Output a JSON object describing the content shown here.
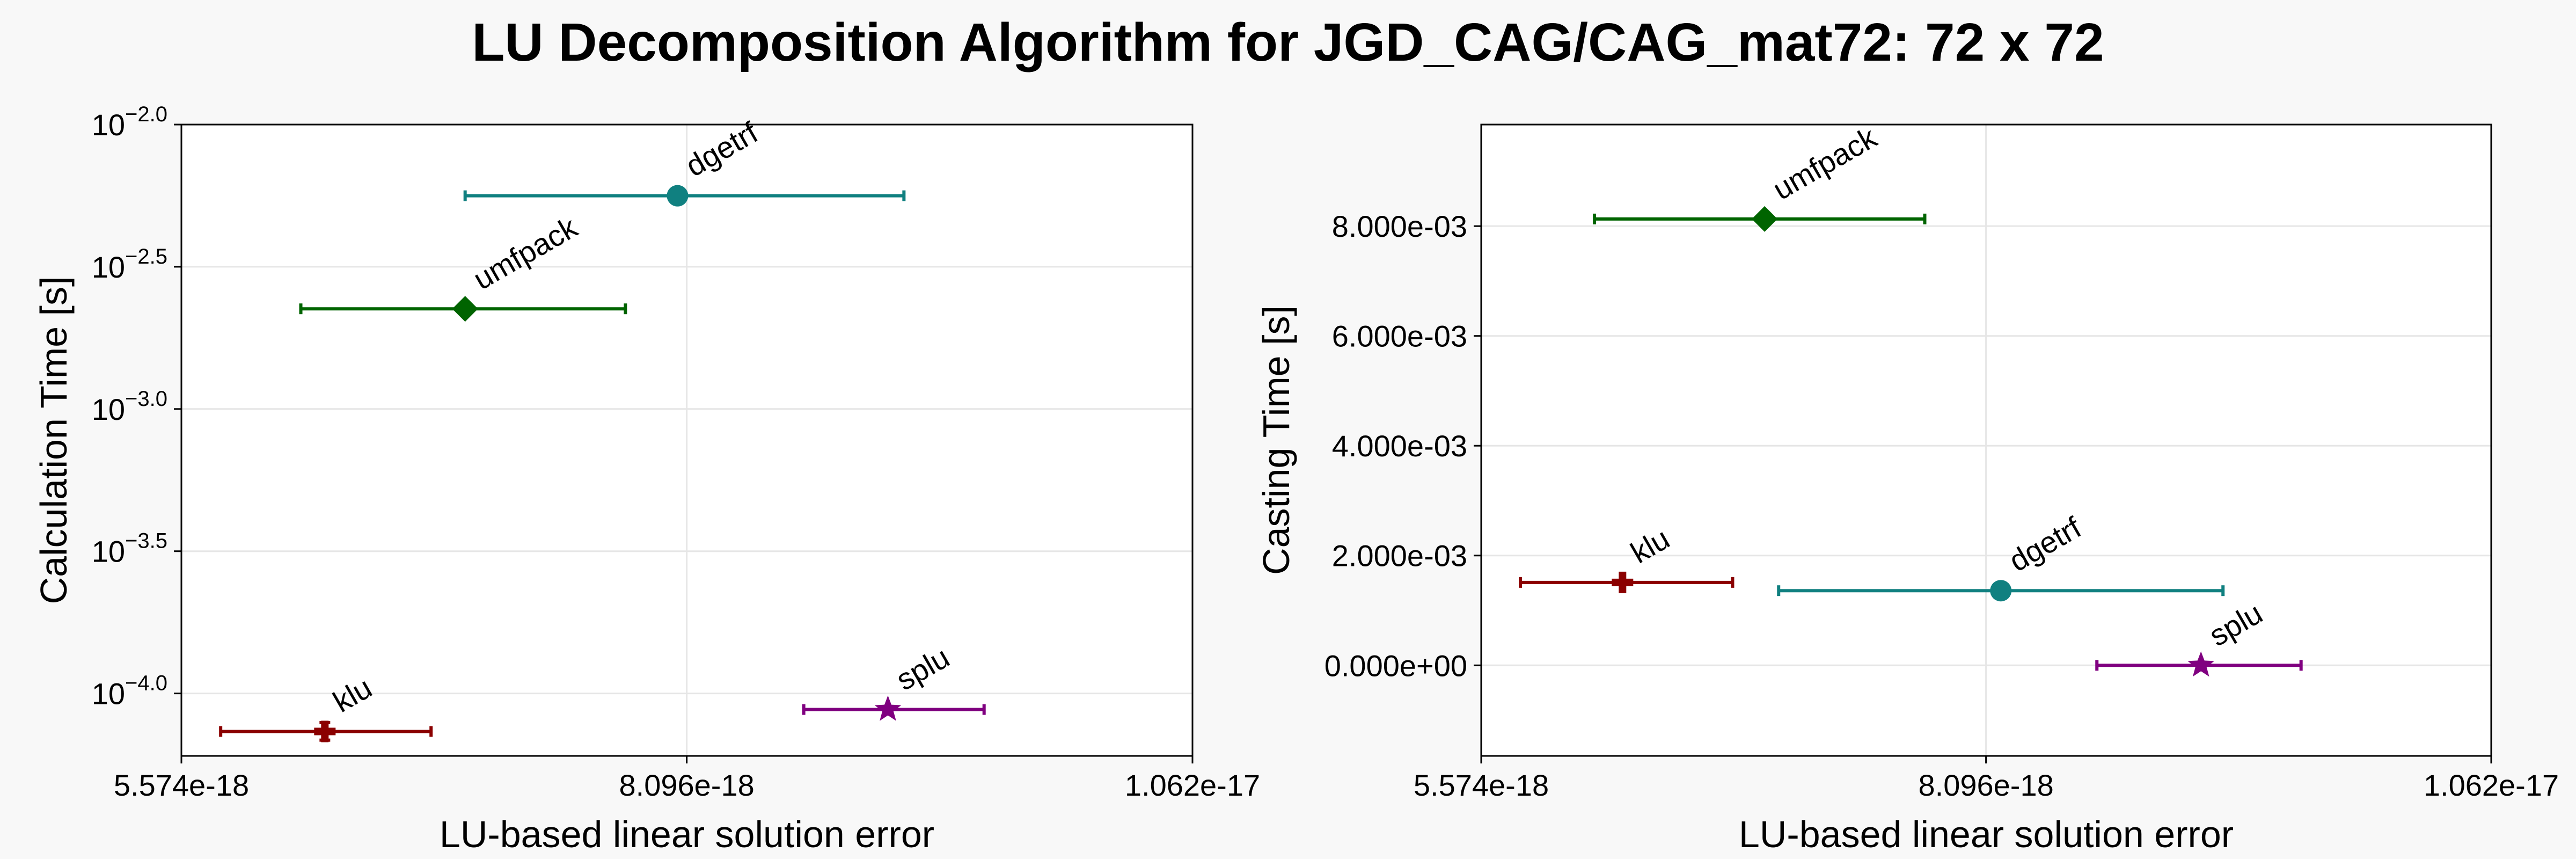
{
  "title": "LU Decomposition Algorithm for JGD_CAG/CAG_mat72: 72 x 72",
  "chart_data": [
    {
      "type": "scatter",
      "name": "left",
      "xlabel": "LU-based linear solution error",
      "ylabel": "Calculation Time [s]",
      "xscale": "linear",
      "yscale": "log",
      "xlim": [
        5.574e-18,
        1.062e-17
      ],
      "ylim": [
        6.03e-05,
        0.01
      ],
      "xticks": [
        5.574e-18,
        8.096e-18,
        1.062e-17
      ],
      "xtick_labels": [
        "5.574e-18",
        "8.096e-18",
        "1.062e-17"
      ],
      "yticks": [
        {
          "value": 0.01,
          "base": "10",
          "exp": "−2.0"
        },
        {
          "value": 0.0031623,
          "base": "10",
          "exp": "−2.5"
        },
        {
          "value": 0.001,
          "base": "10",
          "exp": "−3.0"
        },
        {
          "value": 0.00031623,
          "base": "10",
          "exp": "−3.5"
        },
        {
          "value": 0.0001,
          "base": "10",
          "exp": "−4.0"
        }
      ],
      "grid": true,
      "points": [
        {
          "label": "dgetrf",
          "x": 8.05e-18,
          "xmin": 6.99e-18,
          "xmax": 9.18e-18,
          "y": 0.00562,
          "yerr": null,
          "marker": "circle",
          "color": "#108080"
        },
        {
          "label": "umfpack",
          "x": 6.99e-18,
          "xmin": 6.17e-18,
          "xmax": 7.79e-18,
          "y": 0.00225,
          "yerr": null,
          "marker": "diamond",
          "color": "#006400"
        },
        {
          "label": "klu",
          "x": 6.29e-18,
          "xmin": 5.77e-18,
          "xmax": 6.82e-18,
          "y": 7.35e-05,
          "yerr": [
            6.85e-05,
            7.9e-05
          ],
          "marker": "plus",
          "color": "#8b0000"
        },
        {
          "label": "splu",
          "x": 9.1e-18,
          "xmin": 8.68e-18,
          "xmax": 9.58e-18,
          "y": 8.78e-05,
          "yerr": null,
          "marker": "star",
          "color": "#800080"
        }
      ]
    },
    {
      "type": "scatter",
      "name": "right",
      "xlabel": "LU-based linear solution error",
      "ylabel": "Casting Time [s]",
      "xscale": "linear",
      "yscale": "linear",
      "xlim": [
        5.574e-18,
        1.062e-17
      ],
      "ylim": [
        -0.00165,
        0.00985
      ],
      "xticks": [
        5.574e-18,
        8.096e-18,
        1.062e-17
      ],
      "xtick_labels": [
        "5.574e-18",
        "8.096e-18",
        "1.062e-17"
      ],
      "yticks": [
        {
          "value": 0.0,
          "label": "0.000e+00"
        },
        {
          "value": 0.002,
          "label": "2.000e-03"
        },
        {
          "value": 0.004,
          "label": "4.000e-03"
        },
        {
          "value": 0.006,
          "label": "6.000e-03"
        },
        {
          "value": 0.008,
          "label": "8.000e-03"
        }
      ],
      "grid": true,
      "points": [
        {
          "label": "umfpack",
          "x": 6.99e-18,
          "xmin": 6.14e-18,
          "xmax": 7.79e-18,
          "y": 0.00813,
          "yerr": null,
          "marker": "diamond",
          "color": "#006400"
        },
        {
          "label": "klu",
          "x": 6.28e-18,
          "xmin": 5.77e-18,
          "xmax": 6.83e-18,
          "y": 0.00151,
          "yerr": null,
          "marker": "plus",
          "color": "#8b0000"
        },
        {
          "label": "dgetrf",
          "x": 8.17e-18,
          "xmin": 7.06e-18,
          "xmax": 9.28e-18,
          "y": 0.00136,
          "yerr": null,
          "marker": "circle",
          "color": "#108080"
        },
        {
          "label": "splu",
          "x": 9.17e-18,
          "xmin": 8.65e-18,
          "xmax": 9.67e-18,
          "y": 0.0,
          "yerr": null,
          "marker": "star",
          "color": "#800080"
        }
      ]
    }
  ]
}
